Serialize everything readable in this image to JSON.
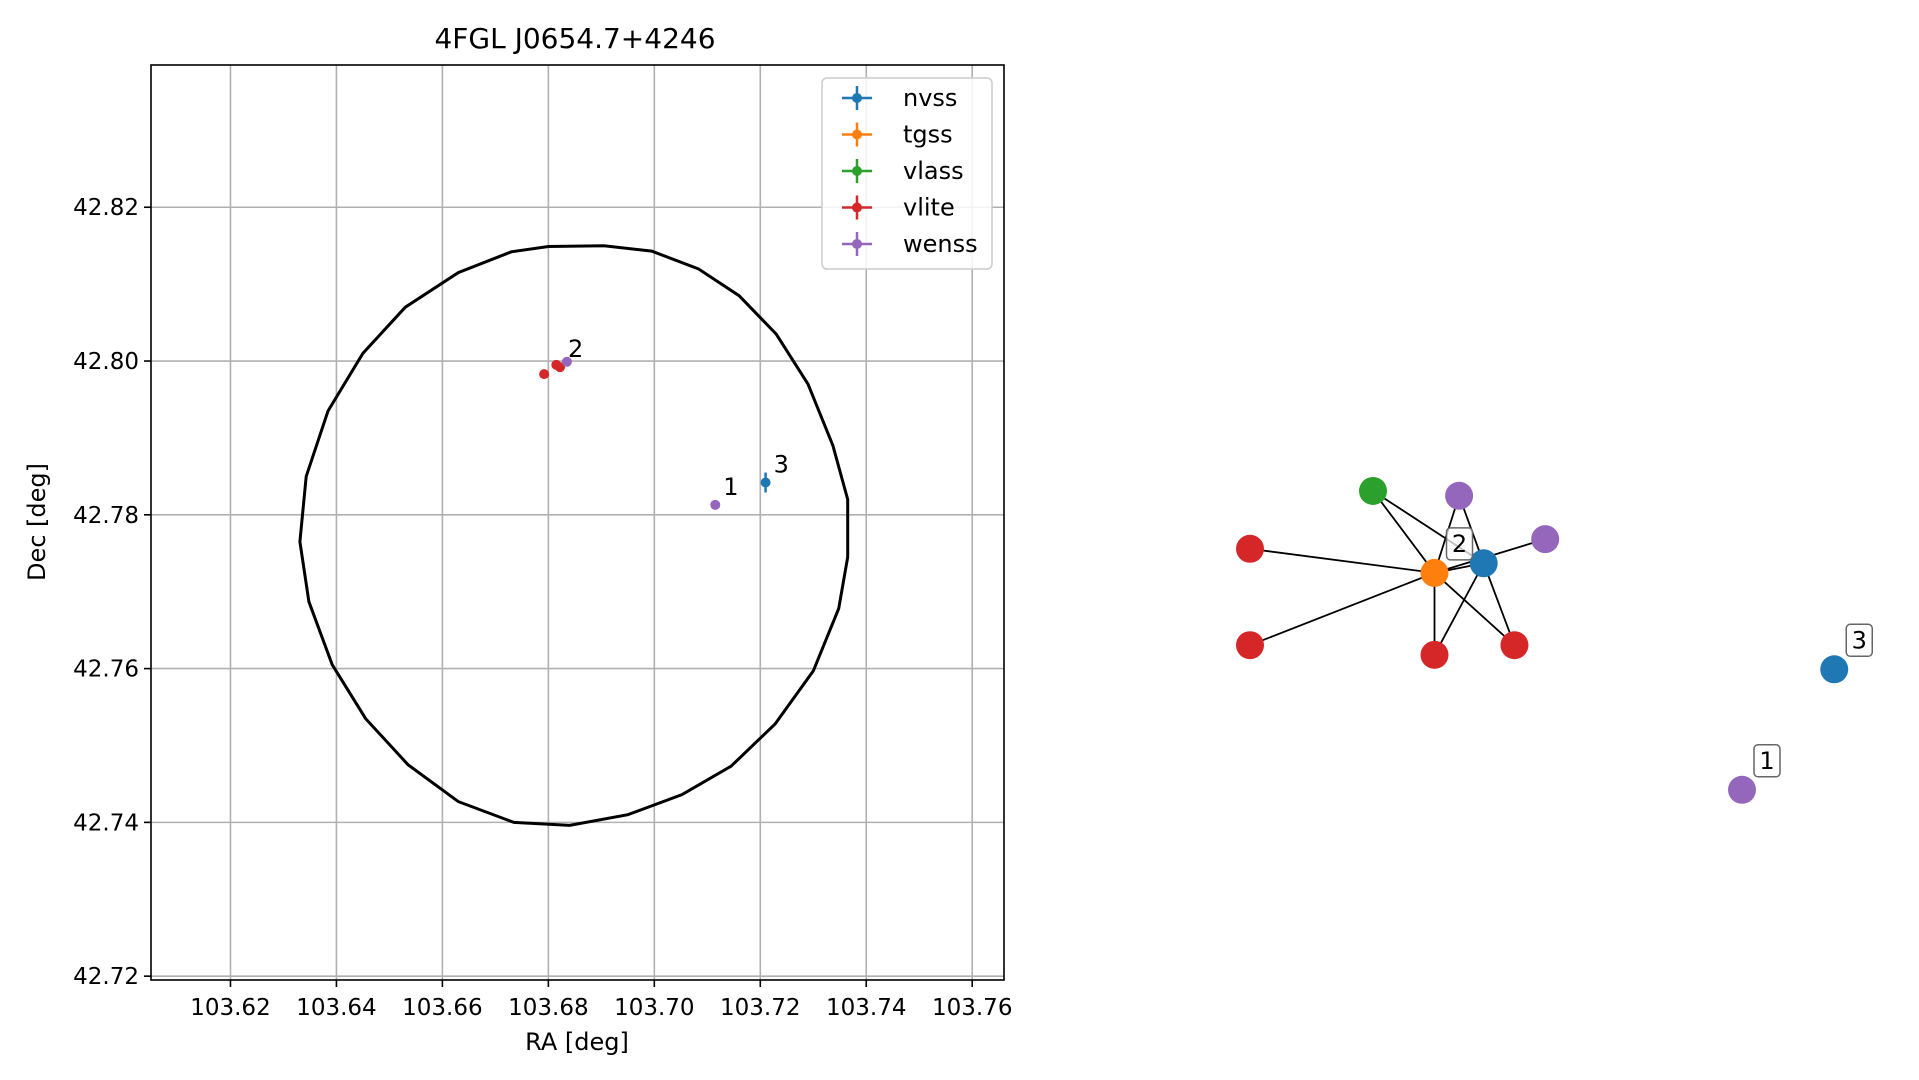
{
  "chart_data": [
    {
      "type": "scatter",
      "title": "4FGL J0654.7+4246",
      "xlabel": "RA [deg]",
      "ylabel": "Dec [deg]",
      "xlim": [
        103.605,
        103.766
      ],
      "ylim": [
        42.7195,
        42.8385
      ],
      "xticks": [
        103.62,
        103.64,
        103.66,
        103.68,
        103.7,
        103.72,
        103.74,
        103.76
      ],
      "xtick_labels": [
        "103.62",
        "103.64",
        "103.66",
        "103.68",
        "103.70",
        "103.72",
        "103.74",
        "103.76"
      ],
      "yticks": [
        42.72,
        42.74,
        42.76,
        42.78,
        42.8,
        42.82
      ],
      "ytick_labels": [
        "42.72",
        "42.74",
        "42.76",
        "42.78",
        "42.80",
        "42.82"
      ],
      "grid": true,
      "legend_position": "top-right",
      "ellipse": {
        "points": [
          [
            103.6905,
            42.815
          ],
          [
            103.6995,
            42.8143
          ],
          [
            103.7083,
            42.812
          ],
          [
            103.716,
            42.8085
          ],
          [
            103.723,
            42.8035
          ],
          [
            103.729,
            42.797
          ],
          [
            103.7337,
            42.789
          ],
          [
            103.7365,
            42.782
          ],
          [
            103.7365,
            42.7745
          ],
          [
            103.7348,
            42.7678
          ],
          [
            103.73,
            42.7597
          ],
          [
            103.7228,
            42.7528
          ],
          [
            103.7145,
            42.7473
          ],
          [
            103.7052,
            42.7436
          ],
          [
            103.695,
            42.741
          ],
          [
            103.684,
            42.7396
          ],
          [
            103.6735,
            42.74
          ],
          [
            103.663,
            42.7427
          ],
          [
            103.6535,
            42.7475
          ],
          [
            103.6455,
            42.7535
          ],
          [
            103.6392,
            42.7605
          ],
          [
            103.6348,
            42.7687
          ],
          [
            103.6331,
            42.7765
          ],
          [
            103.6343,
            42.785
          ],
          [
            103.6384,
            42.7935
          ],
          [
            103.645,
            42.801
          ],
          [
            103.653,
            42.807
          ],
          [
            103.663,
            42.8115
          ],
          [
            103.673,
            42.8142
          ],
          [
            103.68,
            42.8149
          ],
          [
            103.6905,
            42.815
          ]
        ]
      },
      "series": [
        {
          "name": "nvss",
          "color": "#1f77b4",
          "points": [
            {
              "x": 103.721,
              "y": 42.7842,
              "xerr": 0.0,
              "yerr": 0.0013
            }
          ]
        },
        {
          "name": "tgss",
          "color": "#ff7f0e",
          "points": []
        },
        {
          "name": "vlass",
          "color": "#2ca02c",
          "points": []
        },
        {
          "name": "vlite",
          "color": "#d62728",
          "points": [
            {
              "x": 103.6792,
              "y": 42.7983
            },
            {
              "x": 103.6815,
              "y": 42.7995
            },
            {
              "x": 103.6822,
              "y": 42.7992
            }
          ]
        },
        {
          "name": "wenss",
          "color": "#9467bd",
          "points": [
            {
              "x": 103.6835,
              "y": 42.7999
            },
            {
              "x": 103.7115,
              "y": 42.7813
            }
          ]
        }
      ],
      "annotations": [
        {
          "text": "1",
          "x": 103.7115,
          "y": 42.7813
        },
        {
          "text": "2",
          "x": 103.6822,
          "y": 42.7992
        },
        {
          "text": "3",
          "x": 103.721,
          "y": 42.7842
        }
      ]
    },
    {
      "type": "network",
      "axes": false,
      "nodes": [
        {
          "id": "n0",
          "color": "#ff7f0e",
          "x": 0.3,
          "y": 0.55
        },
        {
          "id": "n1",
          "color": "#1f77b4",
          "x": 0.38,
          "y": 0.57
        },
        {
          "id": "n2",
          "color": "#2ca02c",
          "x": 0.2,
          "y": 0.72
        },
        {
          "id": "n3",
          "color": "#9467bd",
          "x": 0.34,
          "y": 0.71
        },
        {
          "id": "n4",
          "color": "#9467bd",
          "x": 0.48,
          "y": 0.62
        },
        {
          "id": "n5",
          "color": "#d62728",
          "x": 0.0,
          "y": 0.6
        },
        {
          "id": "n6",
          "color": "#d62728",
          "x": 0.0,
          "y": 0.4
        },
        {
          "id": "n7",
          "color": "#d62728",
          "x": 0.3,
          "y": 0.38
        },
        {
          "id": "n8",
          "color": "#d62728",
          "x": 0.43,
          "y": 0.4
        },
        {
          "id": "n9",
          "color": "#1f77b4",
          "x": 0.95,
          "y": 0.35
        },
        {
          "id": "n10",
          "color": "#9467bd",
          "x": 0.8,
          "y": 0.1
        }
      ],
      "edges": [
        [
          "n0",
          "n1"
        ],
        [
          "n0",
          "n2"
        ],
        [
          "n0",
          "n3"
        ],
        [
          "n0",
          "n4"
        ],
        [
          "n0",
          "n5"
        ],
        [
          "n0",
          "n6"
        ],
        [
          "n0",
          "n7"
        ],
        [
          "n0",
          "n8"
        ],
        [
          "n1",
          "n2"
        ],
        [
          "n1",
          "n3"
        ],
        [
          "n1",
          "n7"
        ],
        [
          "n1",
          "n8"
        ]
      ],
      "labels": [
        {
          "text": "2",
          "node": "n0"
        },
        {
          "text": "3",
          "node": "n9"
        },
        {
          "text": "1",
          "node": "n10"
        }
      ]
    }
  ]
}
